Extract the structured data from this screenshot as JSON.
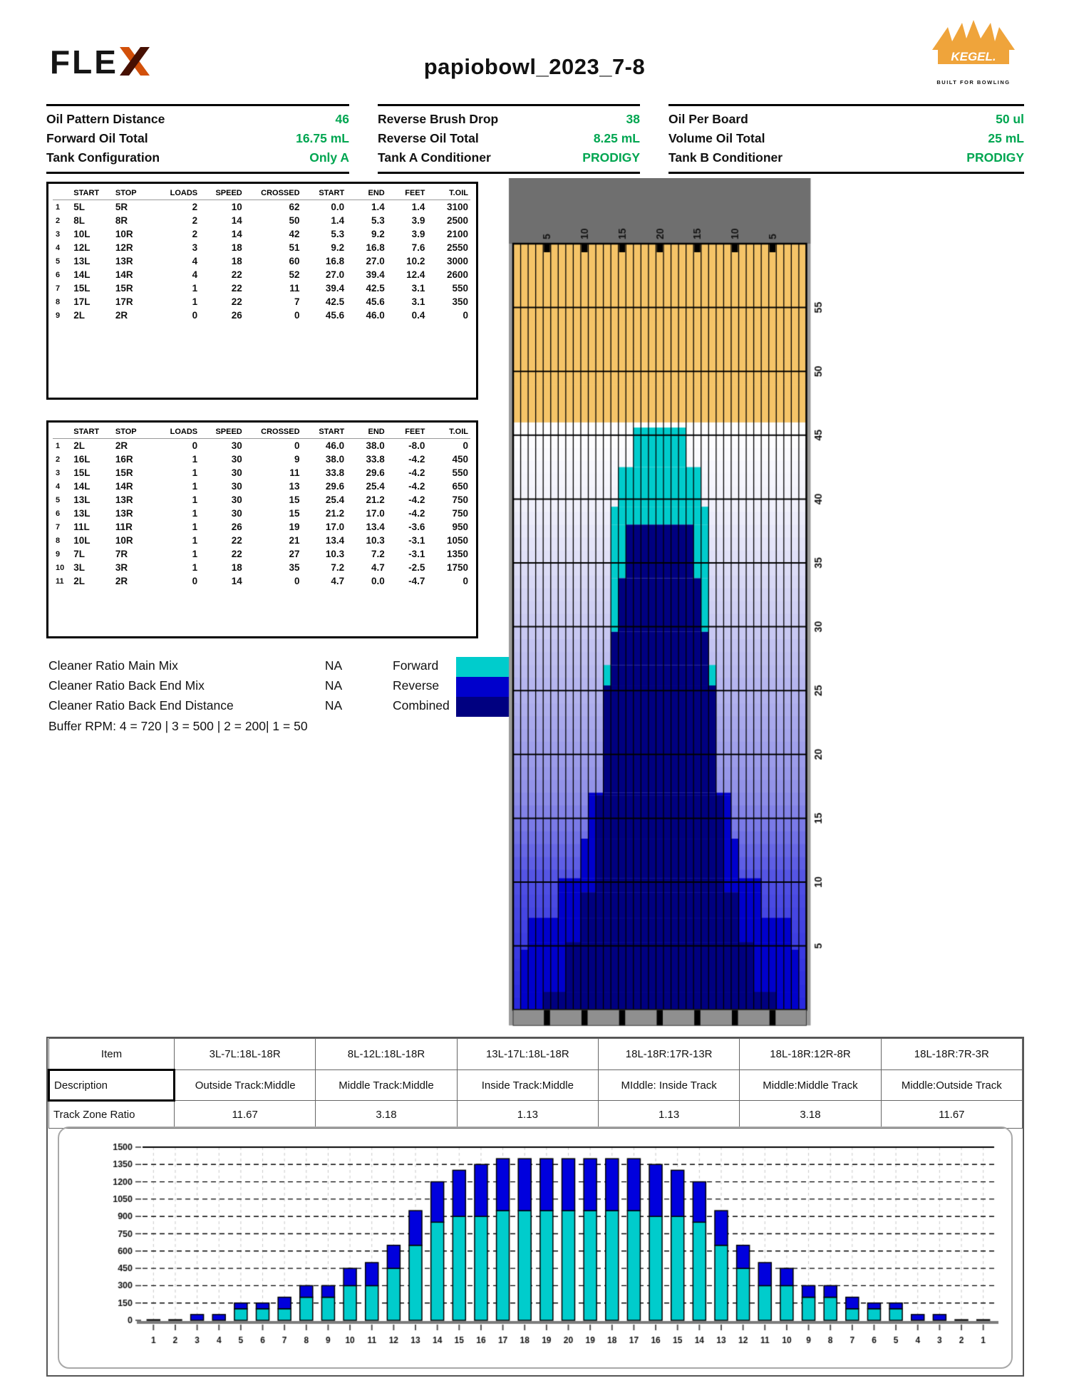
{
  "header": {
    "title": "papiobowl_2023_7-8",
    "flex_text": "FLE",
    "kegel_text": "KEGEL.",
    "kegel_tagline": "BUILT FOR BOWLING"
  },
  "colors": {
    "green": "#00A651",
    "forward_cyan": "#00CCCC",
    "reverse_blue": "#0000CC",
    "combined_navy": "#000080",
    "bare_board": "#F5C468",
    "lane_gray": "#6F6F6F",
    "strip_gray": "#8F8F8F"
  },
  "info": {
    "columns": [
      {
        "rows": [
          {
            "label": "Oil Pattern Distance",
            "value": "46"
          },
          {
            "label": "Forward Oil Total",
            "value": "16.75 mL"
          },
          {
            "label": "Tank Configuration",
            "value": "Only A"
          }
        ]
      },
      {
        "rows": [
          {
            "label": "Reverse Brush Drop",
            "value": "38"
          },
          {
            "label": "Reverse Oil Total",
            "value": "8.25 mL"
          },
          {
            "label": "Tank A Conditioner",
            "value": "PRODIGY"
          }
        ]
      },
      {
        "rows": [
          {
            "label": "Oil Per Board",
            "value": "50 ul"
          },
          {
            "label": "Volume Oil Total",
            "value": "25 mL"
          },
          {
            "label": "Tank B Conditioner",
            "value": "PRODIGY"
          }
        ]
      }
    ]
  },
  "pass_tables": {
    "headers": [
      "START",
      "STOP",
      "LOADS",
      "SPEED",
      "CROSSED",
      "START",
      "END",
      "FEET",
      "T.OIL"
    ],
    "forward_rows": [
      [
        "1",
        "5L",
        "5R",
        "2",
        "10",
        "62",
        "0.0",
        "1.4",
        "1.4",
        "3100"
      ],
      [
        "2",
        "8L",
        "8R",
        "2",
        "14",
        "50",
        "1.4",
        "5.3",
        "3.9",
        "2500"
      ],
      [
        "3",
        "10L",
        "10R",
        "2",
        "14",
        "42",
        "5.3",
        "9.2",
        "3.9",
        "2100"
      ],
      [
        "4",
        "12L",
        "12R",
        "3",
        "18",
        "51",
        "9.2",
        "16.8",
        "7.6",
        "2550"
      ],
      [
        "5",
        "13L",
        "13R",
        "4",
        "18",
        "60",
        "16.8",
        "27.0",
        "10.2",
        "3000"
      ],
      [
        "6",
        "14L",
        "14R",
        "4",
        "22",
        "52",
        "27.0",
        "39.4",
        "12.4",
        "2600"
      ],
      [
        "7",
        "15L",
        "15R",
        "1",
        "22",
        "11",
        "39.4",
        "42.5",
        "3.1",
        "550"
      ],
      [
        "8",
        "17L",
        "17R",
        "1",
        "22",
        "7",
        "42.5",
        "45.6",
        "3.1",
        "350"
      ],
      [
        "9",
        "2L",
        "2R",
        "0",
        "26",
        "0",
        "45.6",
        "46.0",
        "0.4",
        "0"
      ]
    ],
    "reverse_rows": [
      [
        "1",
        "2L",
        "2R",
        "0",
        "30",
        "0",
        "46.0",
        "38.0",
        "-8.0",
        "0"
      ],
      [
        "2",
        "16L",
        "16R",
        "1",
        "30",
        "9",
        "38.0",
        "33.8",
        "-4.2",
        "450"
      ],
      [
        "3",
        "15L",
        "15R",
        "1",
        "30",
        "11",
        "33.8",
        "29.6",
        "-4.2",
        "550"
      ],
      [
        "4",
        "14L",
        "14R",
        "1",
        "30",
        "13",
        "29.6",
        "25.4",
        "-4.2",
        "650"
      ],
      [
        "5",
        "13L",
        "13R",
        "1",
        "30",
        "15",
        "25.4",
        "21.2",
        "-4.2",
        "750"
      ],
      [
        "6",
        "13L",
        "13R",
        "1",
        "30",
        "15",
        "21.2",
        "17.0",
        "-4.2",
        "750"
      ],
      [
        "7",
        "11L",
        "11R",
        "1",
        "26",
        "19",
        "17.0",
        "13.4",
        "-3.6",
        "950"
      ],
      [
        "8",
        "10L",
        "10R",
        "1",
        "22",
        "21",
        "13.4",
        "10.3",
        "-3.1",
        "1050"
      ],
      [
        "9",
        "7L",
        "7R",
        "1",
        "22",
        "27",
        "10.3",
        "7.2",
        "-3.1",
        "1350"
      ],
      [
        "10",
        "3L",
        "3R",
        "1",
        "18",
        "35",
        "7.2",
        "4.7",
        "-2.5",
        "1750"
      ],
      [
        "11",
        "2L",
        "2R",
        "0",
        "14",
        "0",
        "4.7",
        "0.0",
        "-4.7",
        "0"
      ]
    ]
  },
  "cleaner": {
    "rows": [
      {
        "label": "Cleaner Ratio Main Mix",
        "value": "NA"
      },
      {
        "label": "Cleaner Ratio Back End Mix",
        "value": "NA"
      },
      {
        "label": "Cleaner Ratio Back End Distance",
        "value": "NA"
      }
    ],
    "buffer_line": "Buffer RPM: 4 = 720 | 3 = 500 | 2 = 200| 1 = 50"
  },
  "legend": {
    "entries": [
      {
        "label": "Forward",
        "color": "#00CCCC"
      },
      {
        "label": "Reverse",
        "color": "#0000CC"
      },
      {
        "label": "Combined",
        "color": "#000080"
      }
    ]
  },
  "lane_graphic": {
    "board_count": 39,
    "length_ft": 60,
    "pattern_distance_ft": 46,
    "top_labels": [
      "5",
      "10",
      "15",
      "20",
      "15",
      "10",
      "5"
    ],
    "top_label_indices": [
      4,
      9,
      14,
      19,
      24,
      29,
      34
    ],
    "distance_labels": [
      55,
      50,
      45,
      40,
      35,
      30,
      25,
      20,
      15,
      10,
      5
    ],
    "bg_stops": [
      [
        46,
        "#FFFFFF"
      ],
      [
        40,
        "#F2F2FB"
      ],
      [
        30,
        "#CACAF2"
      ],
      [
        17,
        "#9191E8"
      ],
      [
        10,
        "#5050E4"
      ],
      [
        0,
        "#2828DE"
      ]
    ],
    "bands": [
      {
        "from": 46,
        "to": 45.6,
        "cyan": [],
        "navy": [],
        "blue": []
      },
      {
        "from": 45.6,
        "to": 42.5,
        "cyan": [
          [
            16,
            22
          ]
        ],
        "navy": [],
        "blue": []
      },
      {
        "from": 42.5,
        "to": 39.4,
        "cyan": [
          [
            14,
            24
          ]
        ],
        "navy": [],
        "blue": []
      },
      {
        "from": 39.4,
        "to": 38,
        "cyan": [
          [
            13,
            25
          ]
        ],
        "navy": [],
        "blue": []
      },
      {
        "from": 38,
        "to": 33.8,
        "cyan": [
          [
            13,
            14
          ],
          [
            24,
            25
          ]
        ],
        "navy": [
          [
            15,
            23
          ]
        ],
        "blue": []
      },
      {
        "from": 33.8,
        "to": 29.6,
        "cyan": [
          [
            13,
            13
          ],
          [
            25,
            25
          ]
        ],
        "navy": [
          [
            14,
            24
          ]
        ],
        "blue": []
      },
      {
        "from": 29.6,
        "to": 27,
        "cyan": [],
        "navy": [
          [
            13,
            25
          ]
        ],
        "blue": []
      },
      {
        "from": 27,
        "to": 25.4,
        "cyan": [
          [
            12,
            12
          ],
          [
            26,
            26
          ]
        ],
        "navy": [
          [
            13,
            25
          ]
        ],
        "blue": []
      },
      {
        "from": 25.4,
        "to": 17,
        "cyan": [],
        "navy": [
          [
            12,
            26
          ]
        ],
        "blue": []
      },
      {
        "from": 17,
        "to": 16.8,
        "cyan": [],
        "navy": [
          [
            12,
            26
          ]
        ],
        "blue": [
          [
            10,
            11
          ],
          [
            27,
            28
          ]
        ]
      },
      {
        "from": 16.8,
        "to": 13.4,
        "cyan": [],
        "navy": [
          [
            11,
            27
          ]
        ],
        "blue": [
          [
            10,
            10
          ],
          [
            28,
            28
          ]
        ]
      },
      {
        "from": 13.4,
        "to": 10.3,
        "cyan": [],
        "navy": [
          [
            11,
            27
          ]
        ],
        "blue": [
          [
            9,
            10
          ],
          [
            28,
            29
          ]
        ]
      },
      {
        "from": 10.3,
        "to": 9.2,
        "cyan": [],
        "navy": [
          [
            11,
            27
          ]
        ],
        "blue": [
          [
            6,
            10
          ],
          [
            28,
            32
          ]
        ]
      },
      {
        "from": 9.2,
        "to": 7.2,
        "cyan": [],
        "navy": [
          [
            9,
            29
          ]
        ],
        "blue": [
          [
            6,
            8
          ],
          [
            30,
            32
          ]
        ]
      },
      {
        "from": 7.2,
        "to": 5.3,
        "cyan": [],
        "navy": [
          [
            9,
            29
          ]
        ],
        "blue": [
          [
            2,
            8
          ],
          [
            30,
            36
          ]
        ]
      },
      {
        "from": 5.3,
        "to": 4.7,
        "cyan": [],
        "navy": [
          [
            7,
            31
          ]
        ],
        "blue": [
          [
            2,
            6
          ],
          [
            32,
            36
          ]
        ]
      },
      {
        "from": 4.7,
        "to": 1.4,
        "cyan": [],
        "navy": [
          [
            7,
            31
          ]
        ],
        "blue": [
          [
            1,
            6
          ],
          [
            32,
            37
          ]
        ]
      },
      {
        "from": 1.4,
        "to": 0,
        "cyan": [],
        "navy": [
          [
            4,
            34
          ]
        ],
        "blue": [
          [
            1,
            3
          ],
          [
            35,
            37
          ]
        ]
      }
    ]
  },
  "bottom_table": {
    "row_headers": [
      "Item",
      "Description",
      "Track Zone Ratio"
    ],
    "items": [
      "3L-7L:18L-18R",
      "8L-12L:18L-18R",
      "13L-17L:18L-18R",
      "18L-18R:17R-13R",
      "18L-18R:12R-8R",
      "18L-18R:7R-3R"
    ],
    "descriptions": [
      "Outside Track:Middle",
      "Middle Track:Middle",
      "Inside Track:Middle",
      "MIddle: Inside Track",
      "Middle:Middle Track",
      "Middle:Outside Track"
    ],
    "ratios": [
      "11.67",
      "3.18",
      "1.13",
      "1.13",
      "3.18",
      "11.67"
    ]
  },
  "chart_data": {
    "type": "bar",
    "stacked": true,
    "title": "",
    "xlabel": "",
    "ylabel": "",
    "ylim": [
      0,
      1500
    ],
    "ytick_step": 150,
    "grid": true,
    "legend_position": "none",
    "categories": [
      "1",
      "2",
      "3",
      "4",
      "5",
      "6",
      "7",
      "8",
      "9",
      "10",
      "11",
      "12",
      "13",
      "14",
      "15",
      "16",
      "17",
      "18",
      "19",
      "20",
      "19",
      "18",
      "17",
      "16",
      "15",
      "14",
      "13",
      "12",
      "11",
      "10",
      "9",
      "8",
      "7",
      "6",
      "5",
      "4",
      "3",
      "2",
      "1"
    ],
    "series": [
      {
        "name": "Forward",
        "color": "#00CCCC",
        "values": [
          0,
          0,
          0,
          0,
          100,
          100,
          100,
          200,
          200,
          300,
          300,
          450,
          650,
          850,
          900,
          900,
          950,
          950,
          950,
          950,
          950,
          950,
          950,
          900,
          900,
          850,
          650,
          450,
          300,
          300,
          200,
          200,
          100,
          100,
          100,
          0,
          0,
          0,
          0
        ]
      },
      {
        "name": "Reverse",
        "color": "#0000DD",
        "values": [
          5,
          5,
          50,
          50,
          50,
          50,
          100,
          100,
          100,
          150,
          200,
          200,
          300,
          350,
          400,
          450,
          450,
          450,
          450,
          450,
          450,
          450,
          450,
          450,
          400,
          350,
          300,
          200,
          200,
          150,
          100,
          100,
          100,
          50,
          50,
          50,
          50,
          5,
          5
        ]
      }
    ]
  }
}
